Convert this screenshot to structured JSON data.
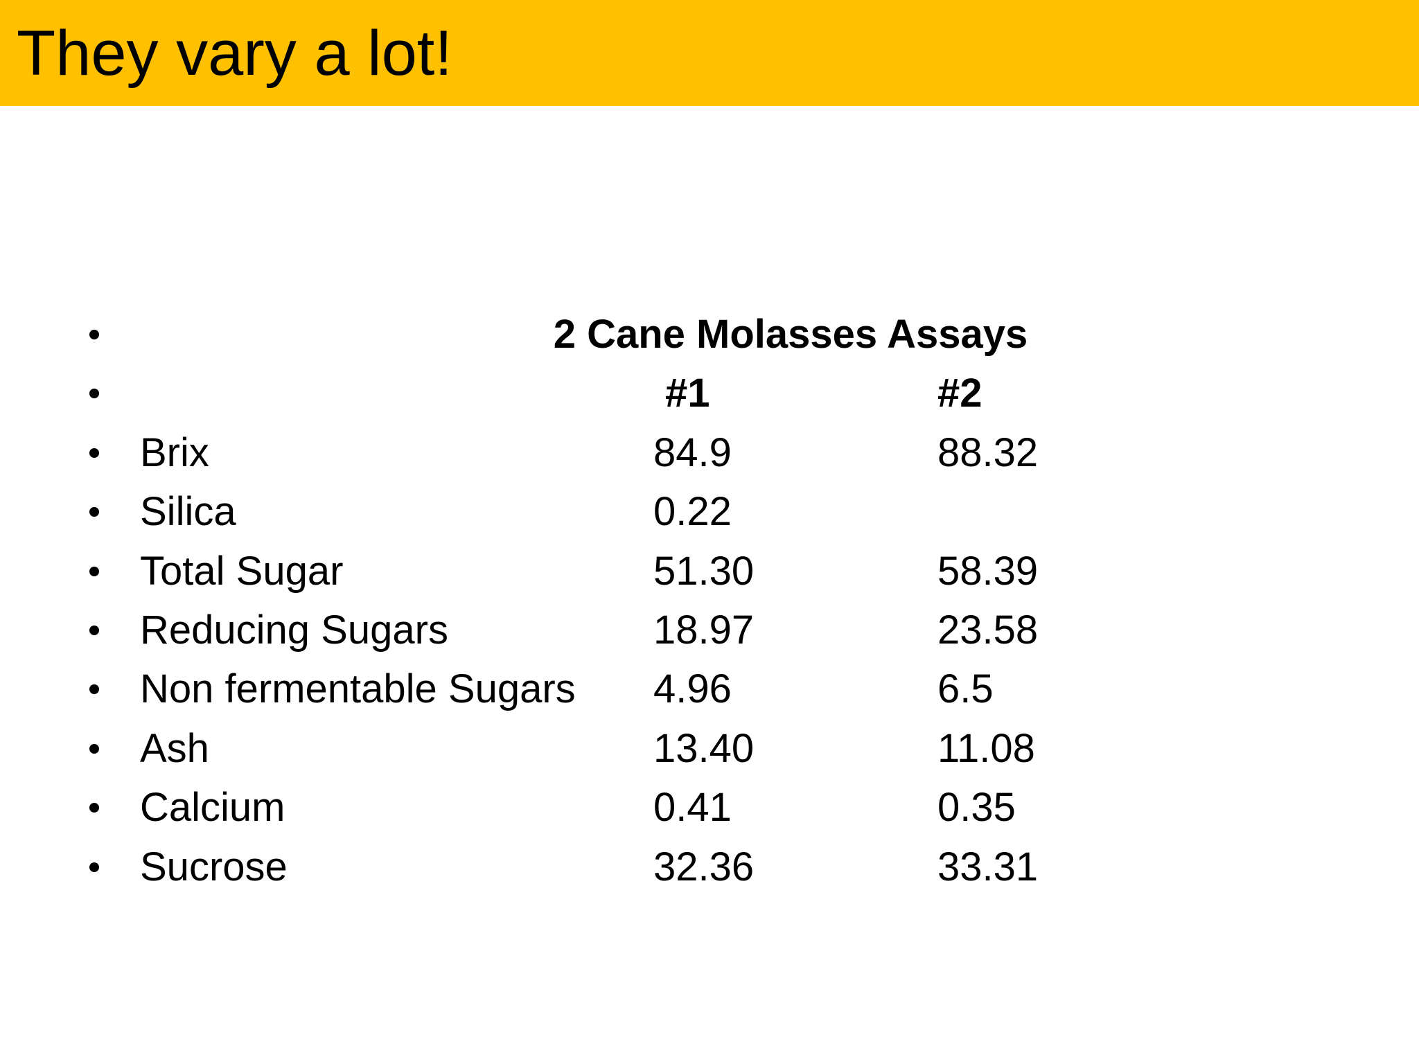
{
  "header": {
    "title": "They vary a lot!"
  },
  "table": {
    "heading": "2 Cane Molasses Assays",
    "columns": [
      "#1",
      "#2"
    ],
    "rows": [
      [
        "Brix",
        "84.9",
        "88.32"
      ],
      [
        "Silica",
        "0.22",
        null
      ],
      [
        "Total Sugar",
        "51.30",
        "58.39"
      ],
      [
        "Reducing Sugars",
        "18.97",
        "23.58"
      ],
      [
        "Non fermentable Sugars",
        "4.96",
        "6.5"
      ],
      [
        "Ash",
        "13.40",
        "11.08"
      ],
      [
        "Calcium",
        "0.41",
        "0.35"
      ],
      [
        "Sucrose",
        "32.36",
        "33.31"
      ]
    ]
  }
}
